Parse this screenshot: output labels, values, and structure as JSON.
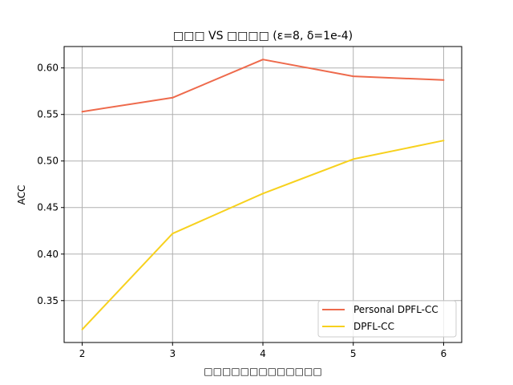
{
  "chart_data": {
    "type": "line",
    "title": "□□□ VS □□□□ (ε=8, δ=1e-4)",
    "xlabel": "□□□□□□□□□□□□□",
    "ylabel": "ACC",
    "x": [
      2,
      3,
      4,
      5,
      6
    ],
    "xticks": [
      "2",
      "3",
      "4",
      "5",
      "6"
    ],
    "yticks": [
      "0.35",
      "0.40",
      "0.45",
      "0.50",
      "0.55",
      "0.60"
    ],
    "xlim": [
      1.8,
      6.2
    ],
    "ylim": [
      0.305,
      0.623
    ],
    "grid": true,
    "legend_position": "lower-right",
    "series": [
      {
        "name": "Personal DPFL-CC",
        "color": "#ee6a4c",
        "values": [
          0.553,
          0.568,
          0.609,
          0.591,
          0.587
        ]
      },
      {
        "name": "DPFL-CC",
        "color": "#f7d11e",
        "values": [
          0.319,
          0.422,
          0.465,
          0.502,
          0.522
        ]
      }
    ]
  }
}
